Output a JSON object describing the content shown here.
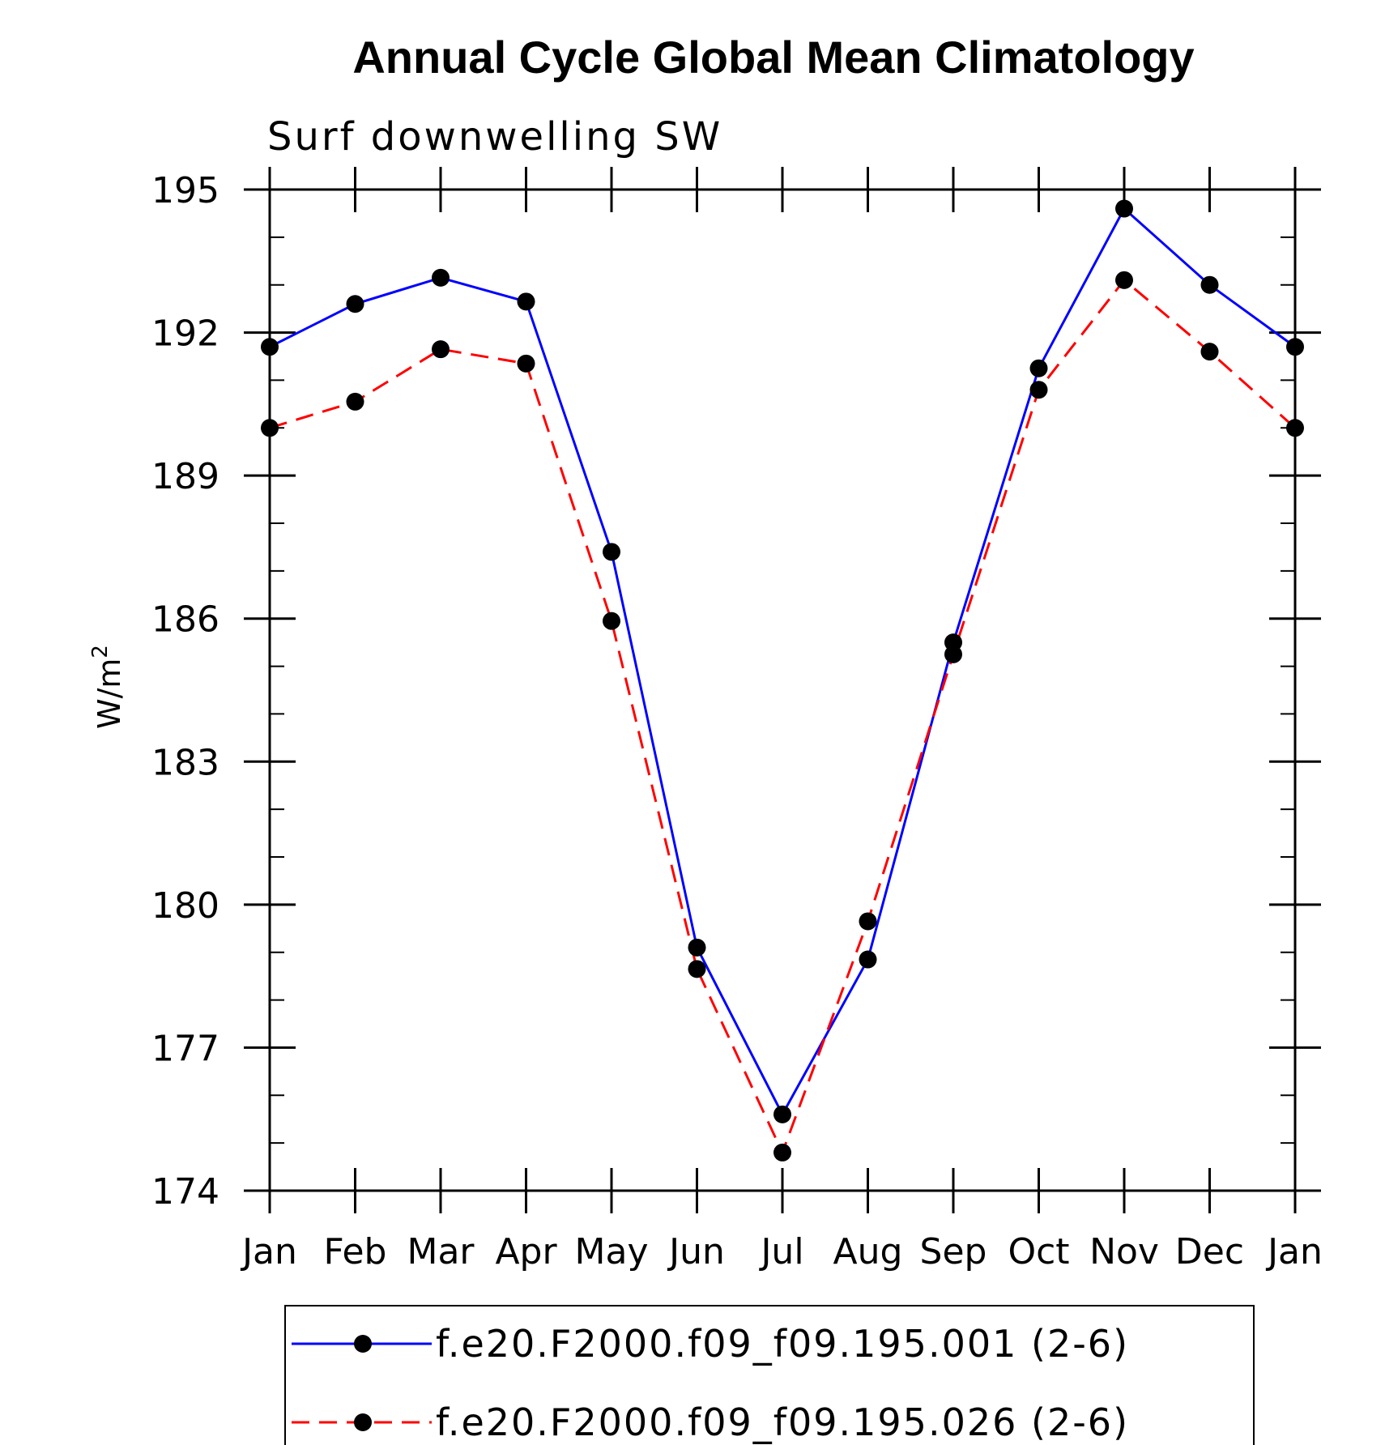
{
  "chart_data": {
    "type": "line",
    "title": "Annual Cycle Global Mean Climatology",
    "subtitle": "Surf downwelling SW",
    "ylabel": "W/m",
    "ylabel_superscript": "2",
    "categories": [
      "Jan",
      "Feb",
      "Mar",
      "Apr",
      "May",
      "Jun",
      "Jul",
      "Aug",
      "Sep",
      "Oct",
      "Nov",
      "Dec",
      "Jan"
    ],
    "ylim": [
      174,
      195
    ],
    "yticks": [
      174,
      177,
      180,
      183,
      186,
      189,
      192,
      195
    ],
    "grid": false,
    "legend_position": "bottom",
    "series": [
      {
        "name": "f.e20.F2000.f09_f09.195.001 (2-6)",
        "color": "#0000ff",
        "line_style": "solid",
        "marker": "filled-circle",
        "values": [
          191.7,
          192.6,
          193.15,
          192.65,
          187.4,
          179.1,
          175.6,
          178.85,
          185.5,
          191.25,
          194.6,
          193.0,
          191.7
        ]
      },
      {
        "name": "f.e20.F2000.f09_f09.195.026 (2-6)",
        "color": "#ff0000",
        "line_style": "dashed",
        "marker": "filled-circle",
        "values": [
          190.0,
          190.55,
          191.65,
          191.35,
          185.95,
          178.65,
          174.8,
          179.65,
          185.25,
          190.8,
          193.1,
          191.6,
          190.0
        ]
      }
    ]
  }
}
